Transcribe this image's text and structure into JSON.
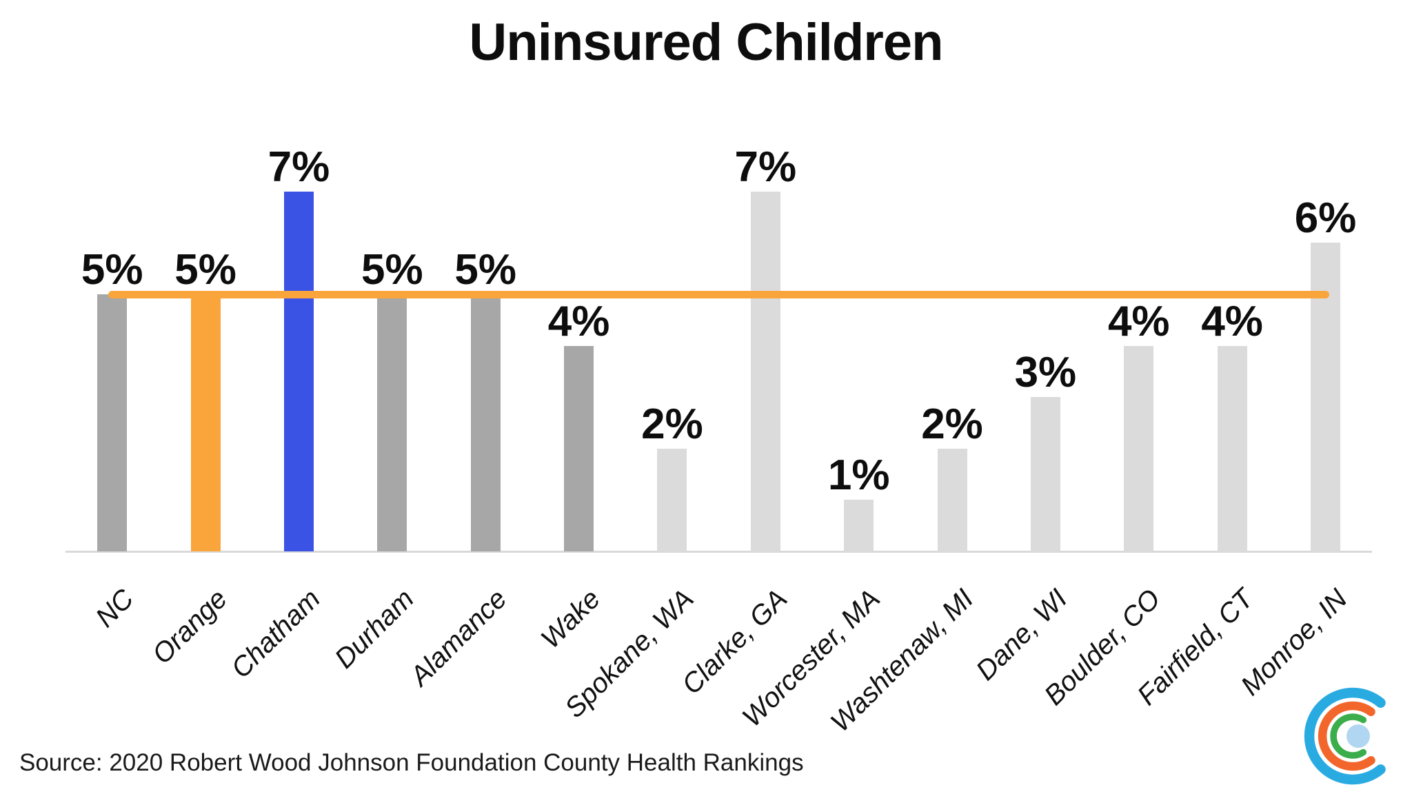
{
  "title": "Uninsured Children",
  "source": "Source: 2020 Robert Wood Johnson Foundation County Health Rankings",
  "colors": {
    "gray": "#A7A7A7",
    "light_gray": "#DBDBDB",
    "orange": "#FAA53C",
    "blue": "#3B53E4",
    "axis": "#D9D9D9",
    "text": "#0D0D0D"
  },
  "chart_data": {
    "type": "bar",
    "title": "Uninsured Children",
    "xlabel": "",
    "ylabel": "",
    "unit": "percent of children uninsured",
    "ylim": [
      0,
      7.5
    ],
    "gridlines": "off",
    "legend": "none",
    "categories": [
      "NC",
      "Orange",
      "Chatham",
      "Durham",
      "Alamance",
      "Wake",
      "Spokane, WA",
      "Clarke, GA",
      "Worcester, MA",
      "Washtenaw, MI",
      "Dane, WI",
      "Boulder, CO",
      "Fairfield, CT",
      "Monroe, IN"
    ],
    "values": [
      5,
      5,
      7,
      5,
      5,
      4,
      2,
      7,
      1,
      2,
      3,
      4,
      4,
      6
    ],
    "data_labels": [
      "5%",
      "5%",
      "7%",
      "5%",
      "5%",
      "4%",
      "2%",
      "7%",
      "1%",
      "2%",
      "3%",
      "4%",
      "4%",
      "6%"
    ],
    "bar_color_keys": [
      "gray",
      "orange",
      "blue",
      "gray",
      "gray",
      "gray",
      "light_gray",
      "light_gray",
      "light_gray",
      "light_gray",
      "light_gray",
      "light_gray",
      "light_gray",
      "light_gray"
    ],
    "reference_line": {
      "value": 5,
      "color_key": "orange",
      "note": "spans first bar center to last bar center"
    }
  },
  "logo": {
    "name": "concentric-c-logo",
    "ring_colors": [
      "#29ABE2",
      "#F2662B",
      "#3BAD4B"
    ],
    "dot_color": "#B0D6F1"
  }
}
